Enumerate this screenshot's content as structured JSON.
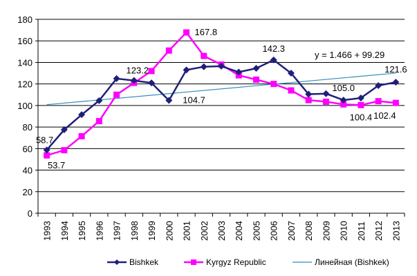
{
  "chart_data": {
    "type": "line",
    "title": "",
    "xlabel": "",
    "ylabel": "",
    "ylim": [
      0,
      180
    ],
    "ytick_step": 20,
    "grid": "horizontal",
    "legend_position": "bottom",
    "categories": [
      "1993",
      "1994",
      "1995",
      "1996",
      "1997",
      "1998",
      "1999",
      "2000",
      "2001",
      "2002",
      "2003",
      "2004",
      "2005",
      "2006",
      "2007",
      "2008",
      "2009",
      "2010",
      "2011",
      "2012",
      "2013"
    ],
    "series": [
      {
        "name": "Bishkek",
        "color": "#1F1F7A",
        "marker": "diamond",
        "values": [
          58.7,
          77.5,
          91.5,
          104.5,
          125.0,
          123.2,
          121.0,
          104.7,
          133.0,
          136.0,
          136.5,
          131.0,
          134.5,
          142.3,
          130.0,
          110.5,
          111.0,
          105.0,
          107.0,
          118.5,
          121.6
        ]
      },
      {
        "name": "Kyrgyz Republic",
        "color": "#FF00FF",
        "marker": "square",
        "values": [
          53.7,
          58.5,
          71.5,
          85.5,
          110.0,
          121.0,
          132.0,
          151.0,
          167.8,
          146.0,
          138.0,
          128.0,
          124.0,
          120.0,
          114.0,
          105.0,
          103.5,
          101.0,
          100.4,
          104.0,
          102.4
        ]
      }
    ],
    "trendline": {
      "name": "Линейная  (Bishkek)",
      "color": "#2E8BC0",
      "slope": 1.466,
      "intercept": 99.29,
      "equation": "y = 1.466 + 99.29"
    },
    "data_labels": [
      {
        "text": "58.7",
        "category": "1993",
        "series": "Bishkek"
      },
      {
        "text": "53.7",
        "category": "1993",
        "series": "Kyrgyz Republic"
      },
      {
        "text": "123.2",
        "category": "1998",
        "series": "Bishkek"
      },
      {
        "text": "104.7",
        "category": "2000",
        "series": "Bishkek"
      },
      {
        "text": "167.8",
        "category": "2001",
        "series": "Kyrgyz Republic"
      },
      {
        "text": "142.3",
        "category": "2006",
        "series": "Bishkek"
      },
      {
        "text": "105.0",
        "category": "2010",
        "series": "Bishkek"
      },
      {
        "text": "100.4",
        "category": "2011",
        "series": "Kyrgyz Republic"
      },
      {
        "text": "102.4",
        "category": "2013",
        "series": "Kyrgyz Republic"
      },
      {
        "text": "121.6",
        "category": "2013",
        "series": "Bishkek"
      }
    ]
  }
}
